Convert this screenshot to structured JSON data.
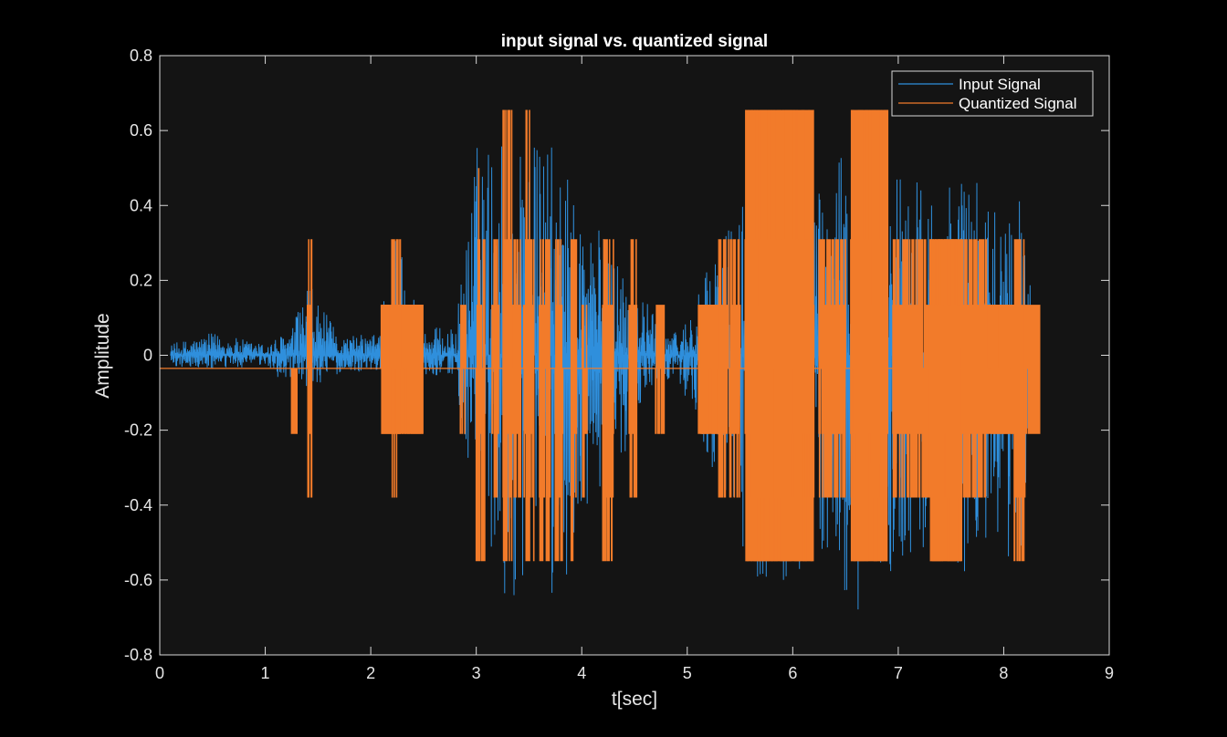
{
  "chart_data": {
    "type": "line",
    "title": "input signal vs. quantized signal",
    "xlabel": "t[sec]",
    "ylabel": "Amplitude",
    "xlim": [
      0,
      9
    ],
    "ylim": [
      -0.8,
      0.8
    ],
    "xticks": [
      0,
      1,
      2,
      3,
      4,
      5,
      6,
      7,
      8,
      9
    ],
    "yticks": [
      -0.8,
      -0.6,
      -0.4,
      -0.2,
      0,
      0.2,
      0.4,
      0.6,
      0.8
    ],
    "xtick_labels": [
      "0",
      "1",
      "2",
      "3",
      "4",
      "5",
      "6",
      "7",
      "8",
      "9"
    ],
    "ytick_labels": [
      "-0.8",
      "-0.6",
      "-0.4",
      "-0.2",
      "0",
      "0.2",
      "0.4",
      "0.6",
      "0.8"
    ],
    "grid": false,
    "legend_position": "top-right",
    "background": "#141414",
    "series": [
      {
        "name": "Input Signal",
        "color": "#2f8fdc",
        "envelope": [
          {
            "t": 0.1,
            "min": -0.03,
            "max": 0.03
          },
          {
            "t": 0.5,
            "min": -0.04,
            "max": 0.06
          },
          {
            "t": 1.0,
            "min": -0.03,
            "max": 0.03
          },
          {
            "t": 1.25,
            "min": -0.09,
            "max": 0.07
          },
          {
            "t": 1.4,
            "min": -0.09,
            "max": 0.2
          },
          {
            "t": 1.7,
            "min": -0.05,
            "max": 0.05
          },
          {
            "t": 2.05,
            "min": -0.04,
            "max": 0.06
          },
          {
            "t": 2.25,
            "min": -0.25,
            "max": 0.36
          },
          {
            "t": 2.5,
            "min": -0.05,
            "max": 0.08
          },
          {
            "t": 2.8,
            "min": -0.06,
            "max": 0.07
          },
          {
            "t": 3.0,
            "min": -0.45,
            "max": 0.57
          },
          {
            "t": 3.15,
            "min": -0.6,
            "max": 0.58
          },
          {
            "t": 3.3,
            "min": -0.7,
            "max": 0.6
          },
          {
            "t": 3.5,
            "min": -0.55,
            "max": 0.58
          },
          {
            "t": 3.7,
            "min": -0.68,
            "max": 0.57
          },
          {
            "t": 4.0,
            "min": -0.5,
            "max": 0.4
          },
          {
            "t": 4.3,
            "min": -0.35,
            "max": 0.3
          },
          {
            "t": 4.6,
            "min": -0.1,
            "max": 0.15
          },
          {
            "t": 4.9,
            "min": -0.05,
            "max": 0.06
          },
          {
            "t": 5.1,
            "min": -0.2,
            "max": 0.16
          },
          {
            "t": 5.4,
            "min": -0.45,
            "max": 0.38
          },
          {
            "t": 5.8,
            "min": -0.68,
            "max": 0.5
          },
          {
            "t": 6.0,
            "min": -0.6,
            "max": 0.65
          },
          {
            "t": 6.3,
            "min": -0.55,
            "max": 0.45
          },
          {
            "t": 6.6,
            "min": -0.73,
            "max": 0.6
          },
          {
            "t": 6.9,
            "min": -0.6,
            "max": 0.55
          },
          {
            "t": 7.3,
            "min": -0.5,
            "max": 0.45
          },
          {
            "t": 7.6,
            "min": -0.6,
            "max": 0.5
          },
          {
            "t": 7.9,
            "min": -0.5,
            "max": 0.42
          },
          {
            "t": 8.15,
            "min": -0.62,
            "max": 0.42
          },
          {
            "t": 8.3,
            "min": -0.08,
            "max": 0.12
          }
        ]
      },
      {
        "name": "Quantized Signal",
        "color": "#f27b2a",
        "levels": [
          -0.55,
          -0.38,
          -0.21,
          -0.035,
          0.135,
          0.31,
          0.655
        ],
        "baseline": -0.035,
        "bursts": [
          {
            "t0": 1.25,
            "t1": 1.3,
            "min": -0.21,
            "max": -0.035
          },
          {
            "t0": 1.4,
            "t1": 1.44,
            "min": -0.38,
            "max": 0.31
          },
          {
            "t0": 2.1,
            "t1": 2.5,
            "min": -0.21,
            "max": 0.135,
            "dense": true
          },
          {
            "t0": 2.2,
            "t1": 2.28,
            "min": -0.38,
            "max": 0.31
          },
          {
            "t0": 2.85,
            "t1": 2.9,
            "min": -0.21,
            "max": 0.135
          },
          {
            "t0": 3.0,
            "t1": 3.08,
            "min": -0.55,
            "max": 0.5
          },
          {
            "t0": 3.15,
            "t1": 3.22,
            "min": -0.38,
            "max": 0.31
          },
          {
            "t0": 3.25,
            "t1": 3.35,
            "min": -0.55,
            "max": 0.655
          },
          {
            "t0": 3.35,
            "t1": 3.42,
            "min": -0.38,
            "max": 0.31
          },
          {
            "t0": 3.45,
            "t1": 3.55,
            "min": -0.55,
            "max": 0.655
          },
          {
            "t0": 3.6,
            "t1": 3.7,
            "min": -0.55,
            "max": 0.31
          },
          {
            "t0": 3.75,
            "t1": 3.82,
            "min": -0.55,
            "max": 0.31
          },
          {
            "t0": 3.9,
            "t1": 3.95,
            "min": -0.55,
            "max": 0.31
          },
          {
            "t0": 4.0,
            "t1": 4.05,
            "min": -0.38,
            "max": 0.135
          },
          {
            "t0": 4.2,
            "t1": 4.3,
            "min": -0.55,
            "max": 0.31
          },
          {
            "t0": 4.45,
            "t1": 4.52,
            "min": -0.38,
            "max": 0.31
          },
          {
            "t0": 4.7,
            "t1": 4.78,
            "min": -0.21,
            "max": 0.135
          },
          {
            "t0": 5.1,
            "t1": 5.3,
            "min": -0.21,
            "max": 0.135,
            "dense": true
          },
          {
            "t0": 5.3,
            "t1": 5.5,
            "min": -0.38,
            "max": 0.31
          },
          {
            "t0": 5.55,
            "t1": 6.2,
            "min": -0.55,
            "max": 0.655,
            "dense": true
          },
          {
            "t0": 6.25,
            "t1": 6.5,
            "min": -0.38,
            "max": 0.31
          },
          {
            "t0": 6.55,
            "t1": 6.9,
            "min": -0.55,
            "max": 0.655,
            "dense": true
          },
          {
            "t0": 6.95,
            "t1": 7.3,
            "min": -0.38,
            "max": 0.31
          },
          {
            "t0": 7.3,
            "t1": 7.6,
            "min": -0.55,
            "max": 0.31,
            "dense": true
          },
          {
            "t0": 7.6,
            "t1": 7.85,
            "min": -0.38,
            "max": 0.31
          },
          {
            "t0": 7.85,
            "t1": 8.1,
            "min": -0.21,
            "max": 0.135,
            "dense": true
          },
          {
            "t0": 8.1,
            "t1": 8.2,
            "min": -0.55,
            "max": 0.31
          },
          {
            "t0": 8.2,
            "t1": 8.34,
            "min": -0.21,
            "max": 0.135
          }
        ]
      }
    ]
  }
}
